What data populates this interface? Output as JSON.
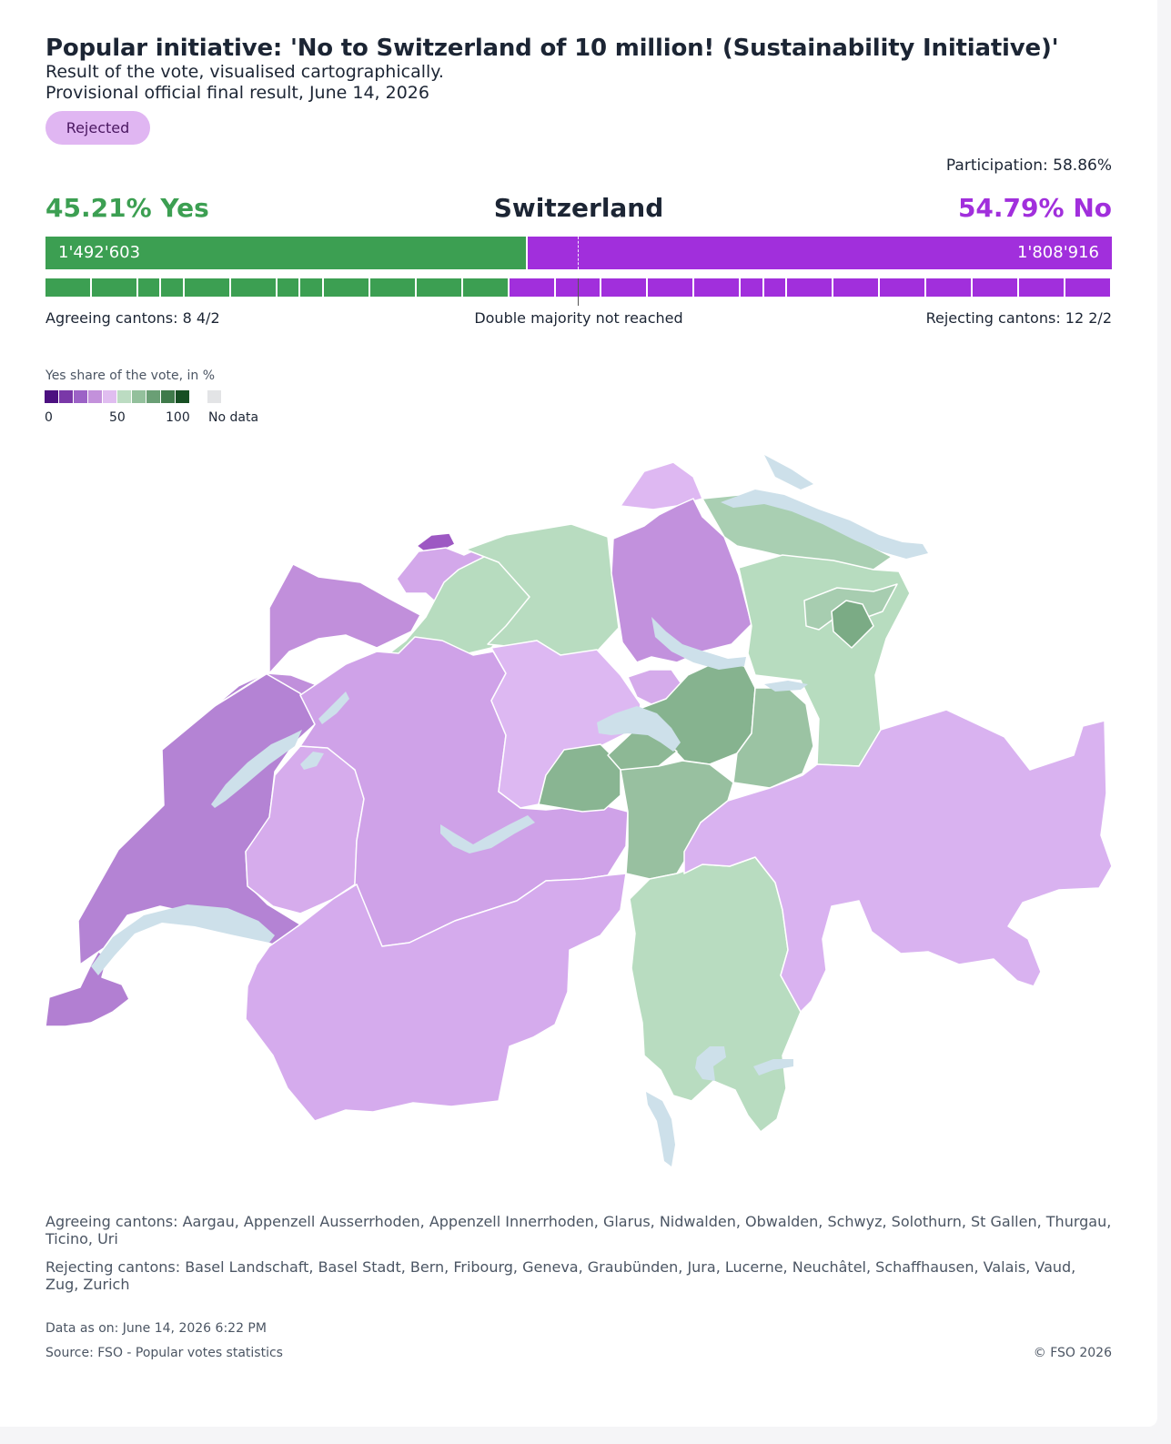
{
  "header": {
    "title": "Popular initiative: 'No to Switzerland of 10 million! (Sustainability Initiative)'",
    "subtitle1": "Result of the vote, visualised cartographically.",
    "subtitle2": "Provisional official final result, June 14, 2026",
    "badge": "Rejected"
  },
  "result": {
    "participation": "Participation: 58.86%",
    "yes_label": "45.21% Yes",
    "no_label": "54.79% No",
    "region": "Switzerland",
    "yes_share": 45.21,
    "yes_votes": "1'492'603",
    "no_votes": "1'808'916",
    "agreeing": "Agreeing cantons: 8 4/2",
    "majority": "Double majority not reached",
    "rejecting": "Rejecting cantons: 12 2/2",
    "colors": {
      "yes": "#3c9f52",
      "no": "#a12fdc"
    },
    "canton_units_yes": [
      2,
      2,
      1,
      1,
      2,
      2,
      1,
      1,
      2,
      2,
      2,
      2
    ],
    "canton_units_no": [
      2,
      2,
      2,
      2,
      2,
      1,
      1,
      2,
      2,
      2,
      2,
      2,
      2,
      2
    ]
  },
  "legend": {
    "title": "Yes share of the vote, in %",
    "colors": [
      "#4c1080",
      "#7a38a8",
      "#9c62c6",
      "#c391db",
      "#e0bdf0",
      "#bcdcc2",
      "#93c09c",
      "#6a9f75",
      "#3f7a4a",
      "#174f23"
    ],
    "nodata_color": "#e3e4e6",
    "labels": [
      "0",
      "50",
      "100"
    ],
    "nodata": "No data"
  },
  "map": {
    "lake_color": "#cde0ea",
    "cantons": [
      {
        "name": "Geneva",
        "color": "#b27fd2"
      },
      {
        "name": "Vaud",
        "color": "#b483d4"
      },
      {
        "name": "Neuchâtel",
        "color": "#c08fdb"
      },
      {
        "name": "Jura",
        "color": "#c18fdb"
      },
      {
        "name": "Basel Stadt",
        "color": "#9d58c3"
      },
      {
        "name": "Basel Landschaft",
        "color": "#d3a8ea"
      },
      {
        "name": "Solothurn",
        "color": "#b7dcbf"
      },
      {
        "name": "Aargau",
        "color": "#b8dcc0"
      },
      {
        "name": "Schaffhausen",
        "color": "#deb8f2"
      },
      {
        "name": "Zurich",
        "color": "#c291dd"
      },
      {
        "name": "Thurgau",
        "color": "#a9cfb2"
      },
      {
        "name": "St Gallen",
        "color": "#b7dcbf"
      },
      {
        "name": "Appenzell Ausserrhoden",
        "color": "#a7cdb0"
      },
      {
        "name": "Appenzell Innerrhoden",
        "color": "#7bab85"
      },
      {
        "name": "Fribourg",
        "color": "#d6acec"
      },
      {
        "name": "Bern",
        "color": "#cfa2e8"
      },
      {
        "name": "Lucerne",
        "color": "#ddb8f2"
      },
      {
        "name": "Zug",
        "color": "#d5abeb"
      },
      {
        "name": "Schwyz",
        "color": "#86b38f"
      },
      {
        "name": "Glarus",
        "color": "#9bc3a3"
      },
      {
        "name": "Obwalden",
        "color": "#89b592"
      },
      {
        "name": "Nidwalden",
        "color": "#8db895"
      },
      {
        "name": "Uri",
        "color": "#98c0a0"
      },
      {
        "name": "Valais",
        "color": "#d5abed"
      },
      {
        "name": "Ticino",
        "color": "#b8dcc0"
      },
      {
        "name": "Graubünden",
        "color": "#d9b2f0"
      }
    ]
  },
  "footer": {
    "agreeing_list": "Agreeing cantons: Aargau, Appenzell Ausserrhoden, Appenzell Innerrhoden, Glarus, Nidwalden, Obwalden, Schwyz, Solothurn, St Gallen, Thurgau, Ticino, Uri",
    "rejecting_list": "Rejecting cantons: Basel Landschaft, Basel Stadt, Bern, Fribourg, Geneva, Graubünden, Jura, Lucerne, Neuchâtel, Schaffhausen, Valais, Vaud, Zug, Zurich",
    "data_as_of": "Data as on: June 14, 2026 6:22 PM",
    "source": "Source: FSO - Popular votes statistics",
    "copyright": "© FSO 2026"
  }
}
